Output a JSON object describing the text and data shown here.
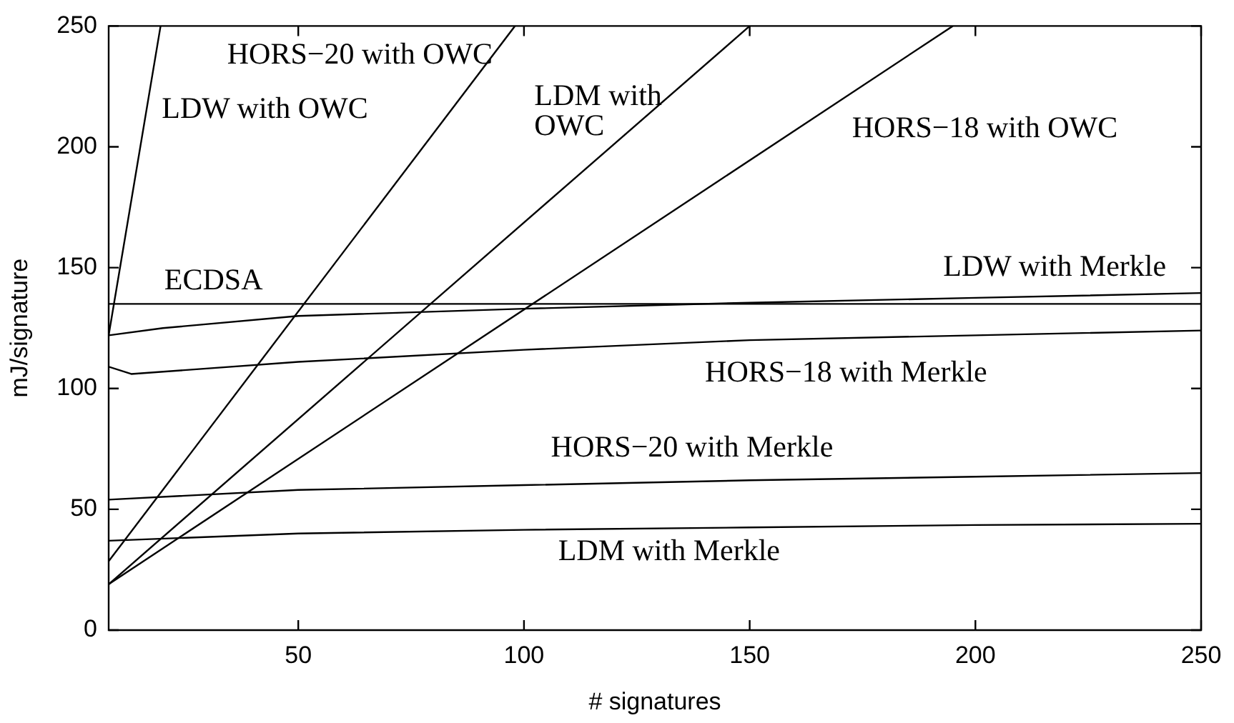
{
  "chart_data": {
    "type": "line",
    "xlabel": "# signatures",
    "ylabel": "mJ/signature",
    "xlim": [
      8,
      250
    ],
    "ylim": [
      0,
      250
    ],
    "xticks": [
      50,
      100,
      150,
      200,
      250
    ],
    "yticks": [
      0,
      50,
      100,
      150,
      200,
      250
    ],
    "marker": "none",
    "line_style": "solid",
    "series": [
      {
        "name": "ECDSA",
        "color": "#000000",
        "x": [
          8,
          250
        ],
        "values": [
          135,
          135
        ]
      },
      {
        "name": "LDW with OWC",
        "color": "#000000",
        "x": [
          8,
          19.5
        ],
        "values": [
          122,
          250
        ]
      },
      {
        "name": "LDW with Merkle",
        "color": "#000000",
        "x": [
          8,
          20,
          50,
          100,
          150,
          200,
          250
        ],
        "values": [
          122,
          125,
          130,
          133,
          135.5,
          137.5,
          139.5
        ]
      },
      {
        "name": "HORS−18 with Merkle",
        "color": "#000000",
        "x": [
          8,
          13,
          50,
          100,
          150,
          200,
          250
        ],
        "values": [
          109,
          106,
          111,
          116,
          120,
          122,
          124
        ]
      },
      {
        "name": "HORS−20 with Merkle",
        "color": "#000000",
        "x": [
          8,
          50,
          100,
          150,
          200,
          250
        ],
        "values": [
          54,
          58,
          60,
          62,
          63.5,
          65
        ]
      },
      {
        "name": "LDM with Merkle",
        "color": "#000000",
        "x": [
          8,
          50,
          100,
          150,
          200,
          250
        ],
        "values": [
          37,
          40,
          41.5,
          42.5,
          43.5,
          44
        ]
      },
      {
        "name": "HORS−20 with OWC",
        "color": "#000000",
        "x": [
          8,
          98
        ],
        "values": [
          28.5,
          250
        ]
      },
      {
        "name": "LDM with OWC",
        "color": "#000000",
        "x": [
          8,
          150
        ],
        "values": [
          19,
          250
        ]
      },
      {
        "name": "HORS−18 with OWC",
        "color": "#000000",
        "x": [
          8,
          195
        ],
        "values": [
          19,
          250
        ]
      }
    ]
  }
}
